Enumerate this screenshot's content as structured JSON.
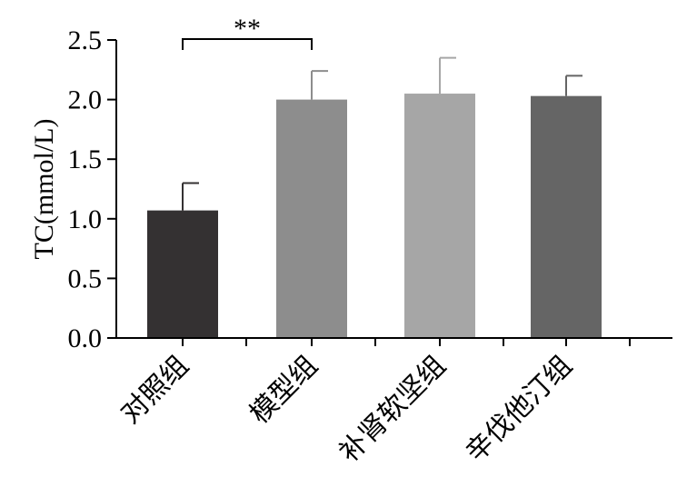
{
  "chart_data": {
    "type": "bar",
    "categories": [
      "对照组",
      "模型组",
      "补肾软坚组",
      "辛伐他汀组"
    ],
    "values": [
      1.07,
      2.0,
      2.05,
      2.03
    ],
    "errors": [
      0.23,
      0.24,
      0.3,
      0.17
    ],
    "colors": [
      "#343132",
      "#8d8d8d",
      "#a6a6a6",
      "#656565"
    ],
    "ylabel": "TC(mmol/L)",
    "xlabel": "",
    "ylim": [
      0,
      2.5
    ],
    "yticks": [
      "0.0",
      "0.5",
      "1.0",
      "1.5",
      "2.0",
      "2.5"
    ],
    "grid": false,
    "significance": {
      "between": [
        "对照组",
        "模型组"
      ],
      "label": "**"
    }
  }
}
